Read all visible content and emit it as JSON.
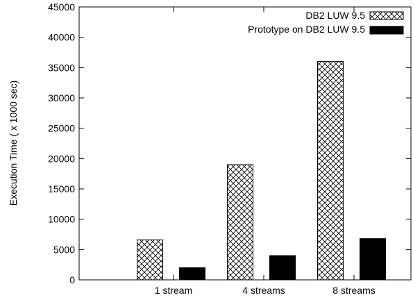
{
  "chart_data": {
    "type": "bar",
    "title": "",
    "xlabel": "",
    "ylabel": "Execution Time ( x 1000 sec)",
    "categories": [
      "1 stream",
      "4 streams",
      "8 streams"
    ],
    "series": [
      {
        "name": "DB2 LUW 9.5",
        "values": [
          6600,
          19000,
          36000
        ],
        "fill": "crosshatch"
      },
      {
        "name": "Prototype on DB2 LUW 9.5",
        "values": [
          2000,
          4000,
          6800
        ],
        "fill": "#000000"
      }
    ],
    "ylim": [
      0,
      45000
    ],
    "yticks": [
      0,
      5000,
      10000,
      15000,
      20000,
      25000,
      30000,
      35000,
      40000,
      45000
    ],
    "grid": false,
    "legend_position": "top-right"
  }
}
